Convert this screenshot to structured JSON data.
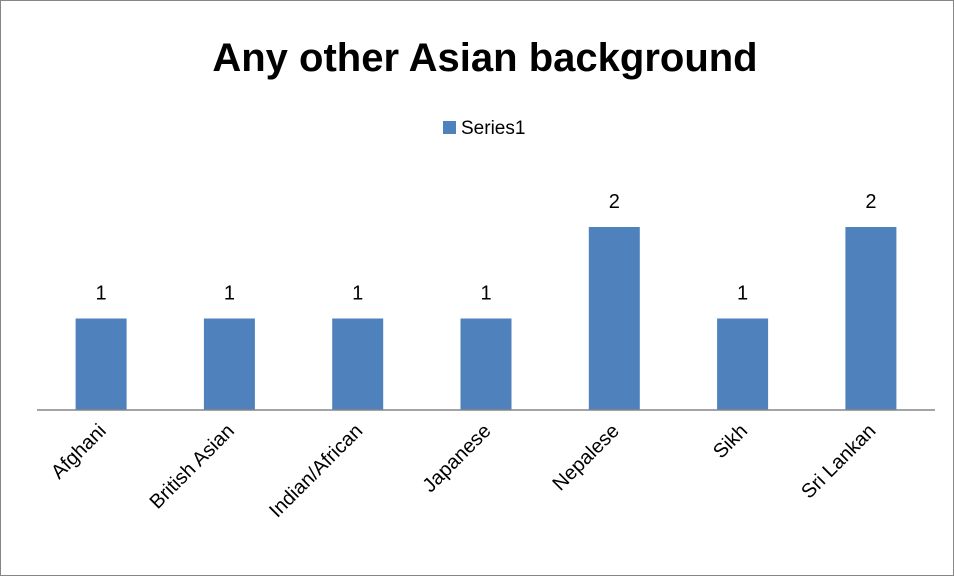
{
  "chart_data": {
    "type": "bar",
    "title": "Any other Asian background",
    "categories": [
      "Afghani",
      "British Asian",
      "Indian/African",
      "Japanese",
      "Nepalese",
      "Sikh",
      "Sri Lankan"
    ],
    "series": [
      {
        "name": "Series1",
        "values": [
          1,
          1,
          1,
          1,
          2,
          1,
          2
        ],
        "color": "#4F81BD"
      }
    ],
    "xlabel": "",
    "ylabel": "",
    "ylim": [
      0,
      2
    ],
    "grid": false,
    "legend_position": "top",
    "data_labels": true,
    "axis_color": "#868686"
  }
}
